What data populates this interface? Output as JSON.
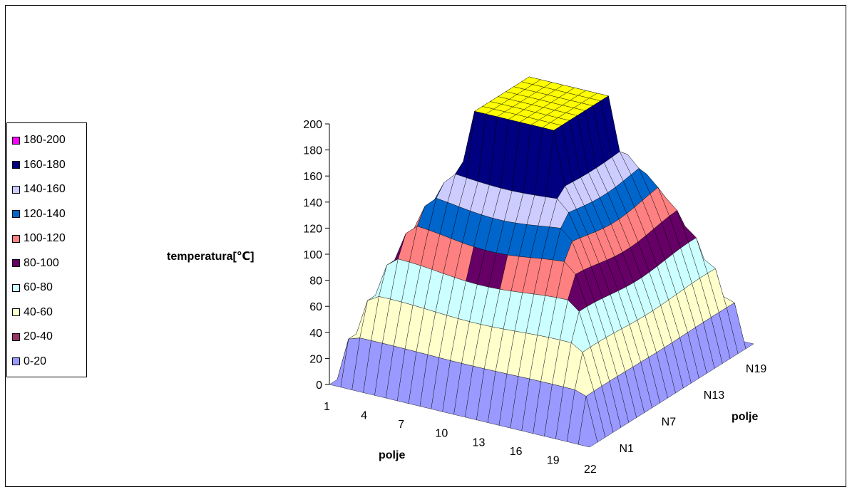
{
  "chart_data": {
    "type": "surface",
    "title": "",
    "zlabel": "temperatura[℃]",
    "xlabel": "polje",
    "ylabel": "polje",
    "z_ticks": [
      "0",
      "20",
      "40",
      "60",
      "80",
      "100",
      "120",
      "140",
      "160",
      "180",
      "200"
    ],
    "x_ticks": [
      "1",
      "4",
      "7",
      "10",
      "13",
      "16",
      "19",
      "22"
    ],
    "y_ticks": [
      "N1",
      "N7",
      "N13",
      "N19"
    ],
    "zlim": [
      0,
      200
    ],
    "grid": false,
    "legend_position": "left",
    "bands": [
      {
        "label": "180-200",
        "color": "#ff00ff"
      },
      {
        "label": "160-180",
        "color": "#000080"
      },
      {
        "label": "140-160",
        "color": "#ccccff"
      },
      {
        "label": "120-140",
        "color": "#0066cc"
      },
      {
        "label": "100-120",
        "color": "#ff8080"
      },
      {
        "label": "80-100",
        "color": "#660066"
      },
      {
        "label": "60-80",
        "color": "#ccffff"
      },
      {
        "label": "40-60",
        "color": "#ffffcc"
      },
      {
        "label": "20-40",
        "color": "#993366"
      },
      {
        "label": "0-20",
        "color": "#9999ff"
      }
    ],
    "top_color": "#ffff00",
    "x_count": 24,
    "y_count": 22,
    "peak_value": 200
  }
}
